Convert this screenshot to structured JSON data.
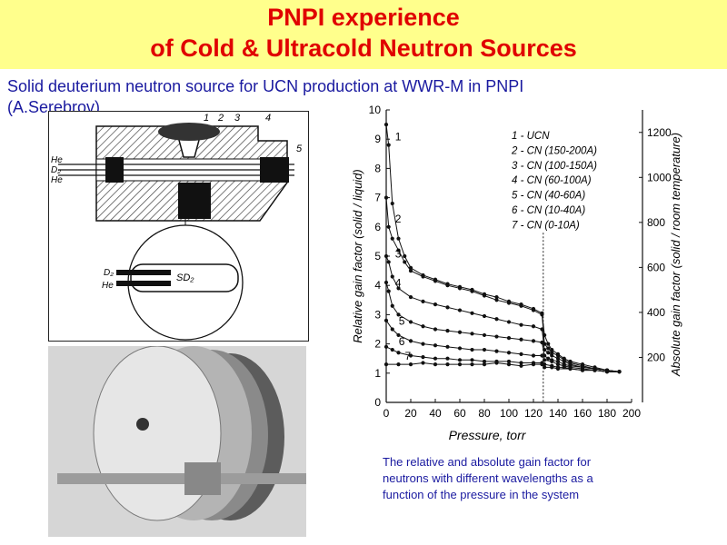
{
  "slide": {
    "title_line1": "PNPI experience",
    "title_line2": "of Cold & Ultracold Neutron Sources",
    "subtitle_line1": "Solid deuterium neutron source for UCN production at WWR-M in PNPI",
    "subtitle_line2": "(A.Serebrov)",
    "caption_lines": [
      "The relative and absolute gain factor for",
      "neutrons with different wavelengths as a",
      "function of the pressure in the system"
    ],
    "title_color": "#e00000",
    "title_bg": "#ffff8c",
    "text_color": "#1a1aa0"
  },
  "diagram": {
    "callouts": [
      "1",
      "2",
      "3",
      "4",
      "5"
    ],
    "labels": [
      "He",
      "D₂",
      "He",
      "D₂",
      "He",
      "SD₂"
    ]
  },
  "chart_data": {
    "type": "line",
    "xlabel": "Pressure, torr",
    "ylabel": "Relative gain factor (solid / liquid)",
    "y2label": "Absolute gain factor (solid / room temperature)",
    "xlim": [
      0,
      200
    ],
    "ylim": [
      0,
      10
    ],
    "y2lim": [
      0,
      1300
    ],
    "xticks": [
      0,
      20,
      40,
      60,
      80,
      100,
      120,
      140,
      160,
      180,
      200
    ],
    "yticks": [
      0,
      1,
      2,
      3,
      4,
      5,
      6,
      7,
      8,
      9,
      10
    ],
    "y2ticks": [
      200,
      400,
      600,
      800,
      1000,
      1200
    ],
    "vline_x": 128,
    "legend": [
      "1 - UCN",
      "2 - CN (150-200A)",
      "3 - CN (100-150A)",
      "4 - CN (60-100A)",
      "5 - CN (40-60A)",
      "6 - CN (10-40A)",
      "7 - CN (0-10A)"
    ],
    "series": [
      {
        "name": "1",
        "x": [
          0,
          2,
          5,
          10,
          15,
          20,
          30,
          40,
          50,
          60,
          70,
          80,
          90,
          100,
          110,
          120,
          127,
          129,
          132,
          135,
          140,
          145,
          150,
          160,
          170,
          180,
          190
        ],
        "values": [
          9.5,
          8.8,
          6.8,
          5.6,
          5.0,
          4.6,
          4.35,
          4.2,
          4.05,
          3.95,
          3.85,
          3.7,
          3.6,
          3.45,
          3.35,
          3.2,
          3.05,
          2.3,
          2.0,
          1.8,
          1.65,
          1.5,
          1.4,
          1.3,
          1.2,
          1.1,
          1.05
        ]
      },
      {
        "name": "2",
        "x": [
          0,
          2,
          5,
          10,
          15,
          20,
          30,
          40,
          50,
          60,
          70,
          80,
          90,
          100,
          110,
          120,
          127,
          129,
          132,
          135,
          140,
          145,
          150,
          160,
          170,
          180,
          190
        ],
        "values": [
          7.0,
          6.0,
          5.6,
          5.2,
          4.8,
          4.5,
          4.3,
          4.15,
          4.0,
          3.9,
          3.8,
          3.65,
          3.5,
          3.4,
          3.3,
          3.15,
          3.0,
          2.0,
          1.85,
          1.7,
          1.6,
          1.45,
          1.35,
          1.25,
          1.15,
          1.1,
          1.05
        ]
      },
      {
        "name": "3",
        "x": [
          0,
          2,
          5,
          10,
          20,
          30,
          40,
          50,
          60,
          70,
          80,
          90,
          100,
          110,
          120,
          127,
          129,
          132,
          135,
          140,
          145,
          150,
          160,
          170,
          180,
          190
        ],
        "values": [
          5.0,
          4.8,
          4.3,
          3.9,
          3.6,
          3.45,
          3.35,
          3.25,
          3.15,
          3.05,
          2.95,
          2.85,
          2.75,
          2.65,
          2.6,
          2.5,
          1.8,
          1.7,
          1.6,
          1.5,
          1.4,
          1.3,
          1.2,
          1.15,
          1.1,
          1.05
        ]
      },
      {
        "name": "4",
        "x": [
          0,
          2,
          5,
          10,
          20,
          30,
          40,
          50,
          60,
          70,
          80,
          90,
          100,
          110,
          120,
          127,
          129,
          132,
          135,
          140,
          145,
          150,
          160,
          170,
          180,
          190
        ],
        "values": [
          4.1,
          3.8,
          3.3,
          3.0,
          2.75,
          2.6,
          2.5,
          2.45,
          2.4,
          2.35,
          2.3,
          2.25,
          2.2,
          2.15,
          2.1,
          2.05,
          1.6,
          1.5,
          1.45,
          1.4,
          1.3,
          1.25,
          1.2,
          1.15,
          1.1,
          1.05
        ]
      },
      {
        "name": "5",
        "x": [
          0,
          5,
          10,
          20,
          30,
          40,
          50,
          60,
          70,
          80,
          90,
          100,
          110,
          120,
          127,
          129,
          135,
          140,
          145,
          150,
          160,
          170,
          180,
          190
        ],
        "values": [
          2.8,
          2.5,
          2.3,
          2.1,
          2.0,
          1.95,
          1.9,
          1.85,
          1.8,
          1.8,
          1.75,
          1.7,
          1.65,
          1.6,
          1.6,
          1.45,
          1.4,
          1.3,
          1.25,
          1.2,
          1.15,
          1.1,
          1.05,
          1.05
        ]
      },
      {
        "name": "6",
        "x": [
          0,
          5,
          10,
          20,
          30,
          40,
          50,
          60,
          70,
          80,
          90,
          100,
          110,
          120,
          127,
          129,
          135,
          140,
          145,
          150,
          160,
          170,
          180,
          190
        ],
        "values": [
          1.9,
          1.8,
          1.7,
          1.6,
          1.55,
          1.5,
          1.5,
          1.45,
          1.45,
          1.4,
          1.4,
          1.4,
          1.35,
          1.35,
          1.35,
          1.3,
          1.25,
          1.2,
          1.2,
          1.15,
          1.1,
          1.1,
          1.05,
          1.05
        ]
      },
      {
        "name": "7",
        "x": [
          0,
          10,
          20,
          30,
          40,
          50,
          60,
          70,
          80,
          90,
          100,
          110,
          120,
          127,
          129,
          135,
          140,
          150,
          160,
          170,
          180,
          190
        ],
        "values": [
          1.3,
          1.3,
          1.3,
          1.35,
          1.3,
          1.3,
          1.3,
          1.3,
          1.3,
          1.35,
          1.3,
          1.25,
          1.3,
          1.3,
          1.2,
          1.2,
          1.15,
          1.15,
          1.1,
          1.1,
          1.05,
          1.05
        ]
      }
    ]
  }
}
